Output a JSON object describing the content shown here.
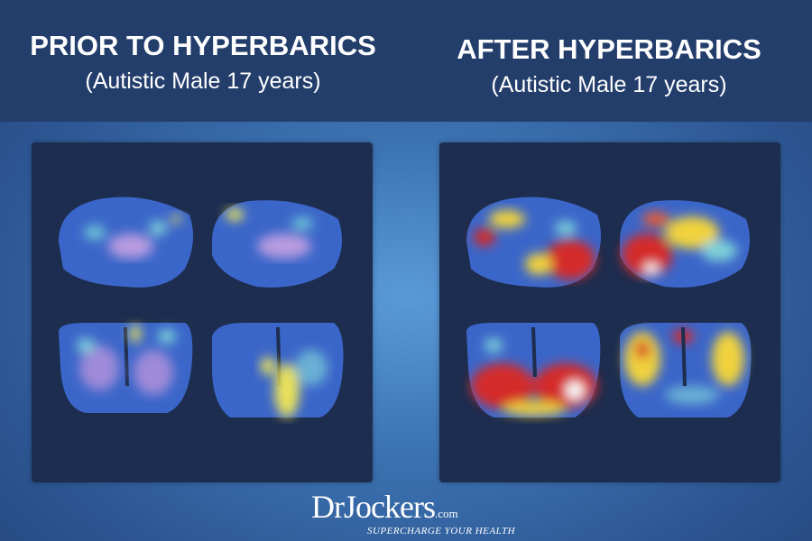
{
  "left": {
    "title": "PRIOR TO HYPERBARICS",
    "subtitle": "(Autistic Male 17 years)"
  },
  "right": {
    "title": "AFTER HYPERBARICS",
    "subtitle": "(Autistic Male 17 years)"
  },
  "logo": {
    "name": "DrJockers",
    "domain": ".com",
    "tagline": "SUPERCHARGE YOUR HEALTH"
  },
  "colors": {
    "header": "#243e6c",
    "panel": "#1d2d4f",
    "brain_base": "#3a64c8",
    "hot": "#d42a2a",
    "warm": "#f0d23c"
  }
}
